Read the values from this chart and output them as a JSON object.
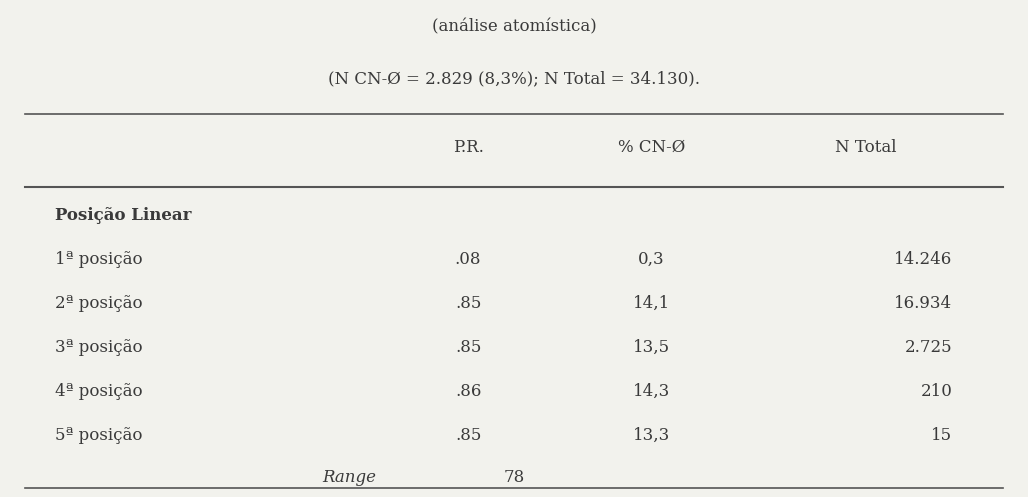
{
  "title_line1": "(análise atomística)",
  "title_line2": "(N CN-Ø = 2.829 (8,3%); N Total = 34.130).",
  "col_headers": [
    "",
    "P.R.",
    "% CN-Ø",
    "N Total"
  ],
  "section_header": "Posição Linear",
  "rows": [
    {
      "label": "1ª posição",
      "pr": ".08",
      "pct": "0,3",
      "ntotal": "14.246"
    },
    {
      "label": "2ª posição",
      "pr": ".85",
      "pct": "14,1",
      "ntotal": "16.934"
    },
    {
      "label": "3ª posição",
      "pr": ".85",
      "pct": "13,5",
      "ntotal": "2.725"
    },
    {
      "label": "4ª posição",
      "pr": ".86",
      "pct": "14,3",
      "ntotal": "210"
    },
    {
      "label": "5ª posição",
      "pr": ".85",
      "pct": "13,3",
      "ntotal": "15"
    }
  ],
  "range_label": "Range",
  "range_value": "78",
  "bg_color": "#f2f2ed",
  "text_color": "#3a3a3a",
  "line_color": "#555555",
  "font_size": 12,
  "header_font_size": 12
}
